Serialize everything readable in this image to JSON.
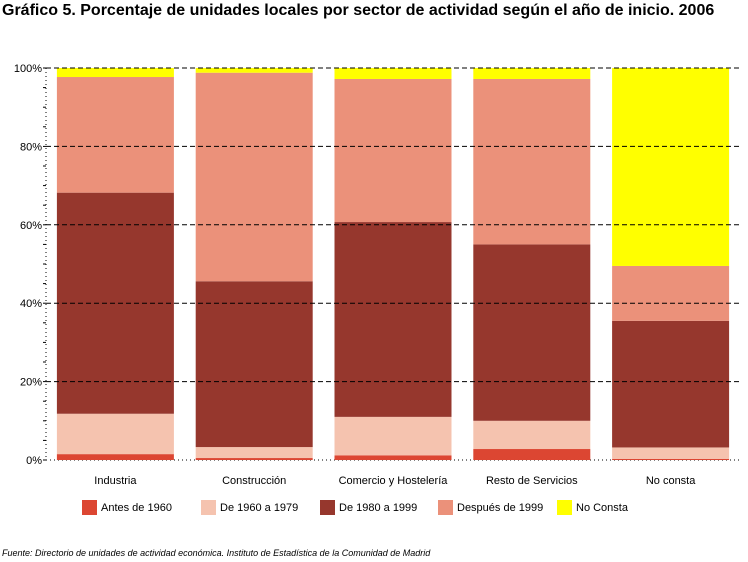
{
  "chart_data": {
    "type": "bar",
    "stacked": true,
    "title": "Gráfico 5. Porcentaje de unidades locales por sector de actividad según el año de inicio. 2006",
    "categories": [
      "Industria",
      "Construcción",
      "Comercio y Hostelería",
      "Resto de Servicios",
      "No consta"
    ],
    "series": [
      {
        "name": "Antes de 1960",
        "color": "#DC4632",
        "values": [
          1.5,
          0.5,
          1.2,
          2.8,
          0.3
        ]
      },
      {
        "name": "De 1960 a 1979",
        "color": "#F5C3AF",
        "values": [
          10.3,
          2.8,
          9.8,
          7.2,
          2.9
        ]
      },
      {
        "name": "De 1980 a 1999",
        "color": "#96372D",
        "values": [
          56.4,
          42.3,
          49.7,
          45.0,
          32.3
        ]
      },
      {
        "name": "Después de 1999",
        "color": "#EB917A",
        "values": [
          29.5,
          53.2,
          36.5,
          42.2,
          14.0
        ]
      },
      {
        "name": "No Consta",
        "color": "#FFFF00",
        "values": [
          2.3,
          1.2,
          2.8,
          2.8,
          50.5
        ]
      }
    ],
    "yticks": [
      "0%",
      "20%",
      "40%",
      "60%",
      "80%",
      "100%"
    ],
    "ylim": [
      0,
      100
    ],
    "grid": true,
    "legend": "bottom"
  },
  "source": "Fuente: Directorio de unidades de actividad económica. Instituto de Estadística de la Comunidad de Madrid"
}
